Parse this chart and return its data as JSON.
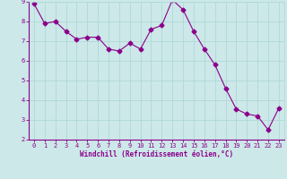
{
  "x": [
    0,
    1,
    2,
    3,
    4,
    5,
    6,
    7,
    8,
    9,
    10,
    11,
    12,
    13,
    14,
    15,
    16,
    17,
    18,
    19,
    20,
    21,
    22,
    23
  ],
  "y": [
    8.9,
    7.9,
    8.0,
    7.5,
    7.1,
    7.2,
    7.2,
    6.6,
    6.5,
    6.9,
    6.6,
    7.6,
    7.8,
    9.1,
    8.6,
    7.5,
    6.6,
    5.8,
    4.6,
    3.55,
    3.3,
    3.2,
    2.5,
    3.6
  ],
  "line_color": "#8b008b",
  "marker": "D",
  "marker_size": 2.5,
  "bg_color": "#cce8e8",
  "grid_color": "#b0d8d8",
  "xlabel": "Windchill (Refroidissement éolien,°C)",
  "xlim": [
    -0.5,
    23.5
  ],
  "ylim": [
    2,
    9
  ],
  "xticks": [
    0,
    1,
    2,
    3,
    4,
    5,
    6,
    7,
    8,
    9,
    10,
    11,
    12,
    13,
    14,
    15,
    16,
    17,
    18,
    19,
    20,
    21,
    22,
    23
  ],
  "yticks": [
    2,
    3,
    4,
    5,
    6,
    7,
    8,
    9
  ],
  "tick_color": "#8b008b",
  "label_color": "#8b008b",
  "axis_color": "#8b008b",
  "tick_fontsize": 5.0,
  "xlabel_fontsize": 5.5
}
